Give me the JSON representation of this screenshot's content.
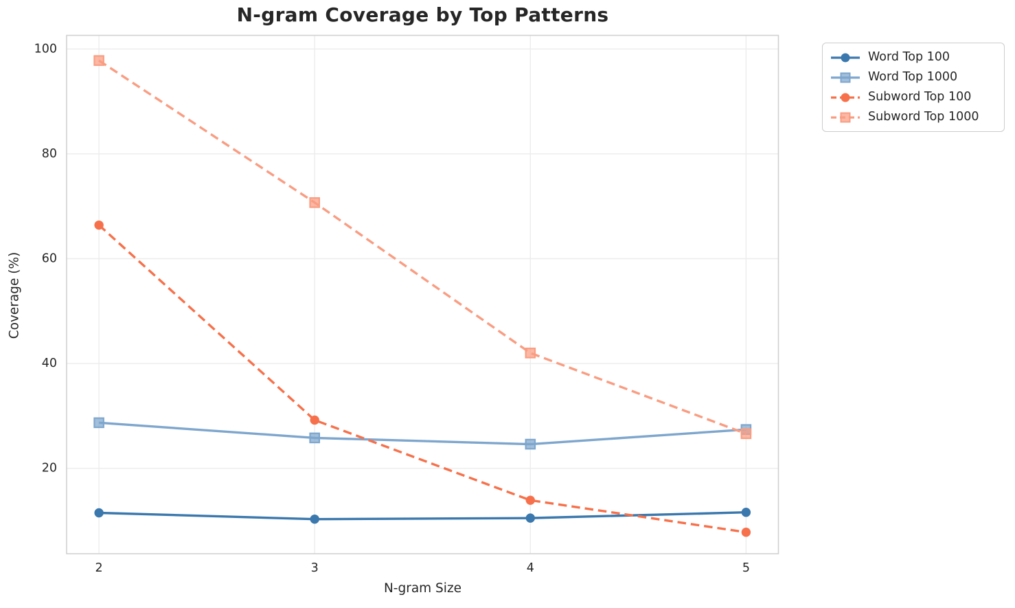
{
  "theme": {
    "background": "#ffffff",
    "grid_color": "#ececec",
    "spine_color": "#d0d0d0",
    "text_color": "#262626",
    "title_color": "#262626",
    "legend_border_color": "#cccccc"
  },
  "chart_data": {
    "type": "line",
    "title": "N-gram Coverage by Top Patterns",
    "xlabel": "N-gram Size",
    "ylabel": "Coverage (%)",
    "x": [
      2,
      3,
      4,
      5
    ],
    "xtick_labels": [
      "2",
      "3",
      "4",
      "5"
    ],
    "ytick_values": [
      20,
      40,
      60,
      80,
      100
    ],
    "ytick_labels": [
      "20",
      "40",
      "60",
      "80",
      "100"
    ],
    "xlim": [
      1.85,
      5.15
    ],
    "ylim": [
      3.7,
      102.6
    ],
    "grid": true,
    "legend_position": "outside-upper-right",
    "series": [
      {
        "name": "Word Top 100",
        "color": "#3b78ad",
        "line_style": "solid",
        "marker": "circle",
        "values": [
          11.5,
          10.3,
          10.5,
          11.6
        ]
      },
      {
        "name": "Word Top 1000",
        "color": "#7ea6cd",
        "line_style": "solid",
        "marker": "square",
        "values": [
          28.7,
          25.8,
          24.6,
          27.4
        ]
      },
      {
        "name": "Subword Top 100",
        "color": "#f6714b",
        "line_style": "dashed",
        "marker": "circle",
        "values": [
          66.4,
          29.2,
          13.9,
          7.8
        ]
      },
      {
        "name": "Subword Top 1000",
        "color": "#f99d82",
        "line_style": "dashed",
        "marker": "square",
        "values": [
          97.8,
          70.7,
          42.0,
          26.6
        ]
      }
    ]
  }
}
